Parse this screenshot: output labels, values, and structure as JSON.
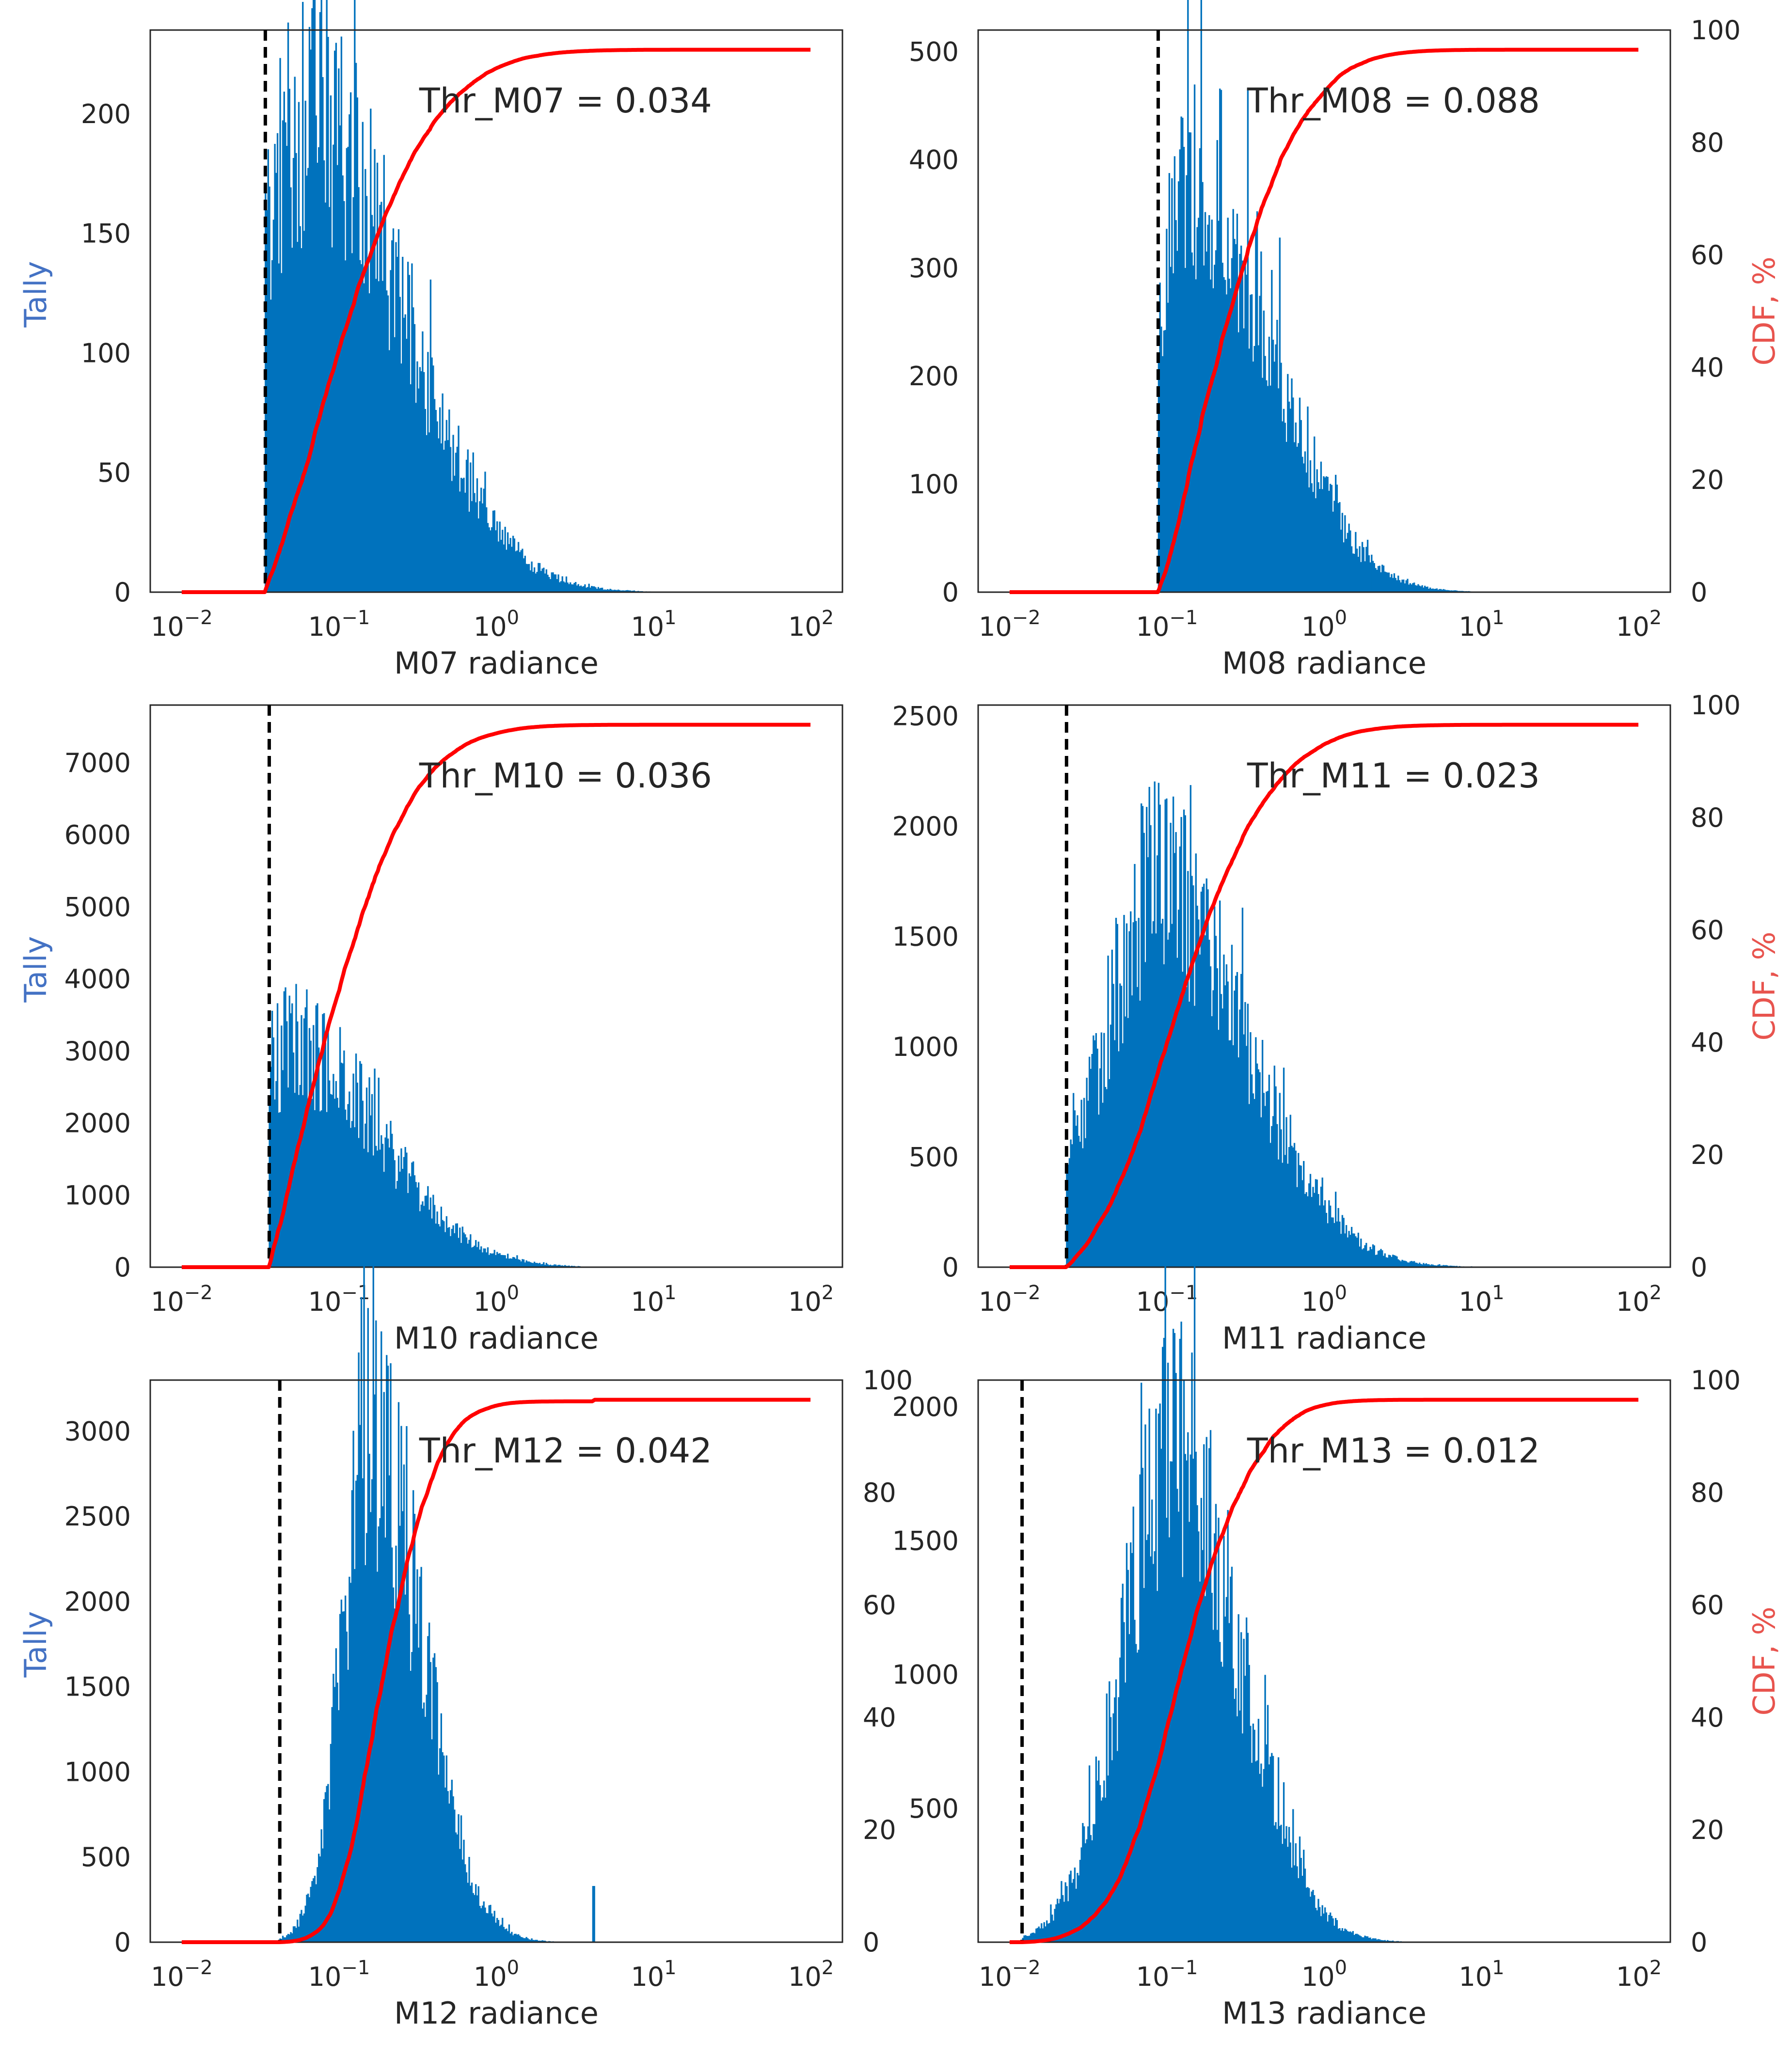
{
  "colors": {
    "hist": "#0072bd",
    "cdf": "#ff0000",
    "tally_label": "#4472c4",
    "cdf_label": "#e8544e",
    "threshold": "#000000",
    "axis": "#262626"
  },
  "chart_data": [
    {
      "type": "bar",
      "id": "m07",
      "xlabel": "M07 radiance",
      "ylabel": "Tally",
      "y2label": "",
      "xscale": "log",
      "xlim_log10": [
        -2.2,
        2.2
      ],
      "ylim": [
        0,
        235
      ],
      "yticks": [
        "0",
        "50",
        "100",
        "150",
        "200"
      ],
      "ytick_values": [
        0,
        50,
        100,
        150,
        200
      ],
      "y2ticks": [],
      "xticks": [
        {
          "base": "10",
          "exp": "−2",
          "log": -2
        },
        {
          "base": "10",
          "exp": "−1",
          "log": -1
        },
        {
          "base": "10",
          "exp": "0",
          "log": 0
        },
        {
          "base": "10",
          "exp": "1",
          "log": 1
        },
        {
          "base": "10",
          "exp": "2",
          "log": 2
        }
      ],
      "annotation": "Thr_M07 = 0.034",
      "threshold": 0.034,
      "hist": {
        "peak_log10": -1.2,
        "peak": 200,
        "sigma_left": 0.35,
        "sigma_right": 0.6,
        "xmax_log10": 1.2,
        "spike_log10": -1.0,
        "spike_height": 0
      }
    },
    {
      "type": "bar",
      "id": "m08",
      "xlabel": "M08 radiance",
      "ylabel": "",
      "y2label": "CDF, %",
      "xscale": "log",
      "xlim_log10": [
        -2.2,
        2.2
      ],
      "ylim": [
        0,
        520
      ],
      "yticks": [
        "0",
        "100",
        "200",
        "300",
        "400",
        "500"
      ],
      "ytick_values": [
        0,
        100,
        200,
        300,
        400,
        500
      ],
      "y2ticks": [
        "0",
        "20",
        "40",
        "60",
        "80",
        "100"
      ],
      "xticks": [
        {
          "base": "10",
          "exp": "−2",
          "log": -2
        },
        {
          "base": "10",
          "exp": "−1",
          "log": -1
        },
        {
          "base": "10",
          "exp": "0",
          "log": 0
        },
        {
          "base": "10",
          "exp": "1",
          "log": 1
        },
        {
          "base": "10",
          "exp": "2",
          "log": 2
        }
      ],
      "annotation": "Thr_M08 = 0.088",
      "threshold": 0.088,
      "hist": {
        "peak_log10": -0.85,
        "peak": 400,
        "sigma_left": 0.2,
        "sigma_right": 0.5,
        "xmax_log10": 1.4,
        "spike_log10": -1.0,
        "spike_height": 0
      }
    },
    {
      "type": "bar",
      "id": "m10",
      "xlabel": "M10 radiance",
      "ylabel": "Tally",
      "y2label": "",
      "xscale": "log",
      "xlim_log10": [
        -2.2,
        2.2
      ],
      "ylim": [
        0,
        7800
      ],
      "yticks": [
        "0",
        "1000",
        "2000",
        "3000",
        "4000",
        "5000",
        "6000",
        "7000"
      ],
      "ytick_values": [
        0,
        1000,
        2000,
        3000,
        4000,
        5000,
        6000,
        7000
      ],
      "y2ticks": [],
      "xticks": [
        {
          "base": "10",
          "exp": "−2",
          "log": -2
        },
        {
          "base": "10",
          "exp": "−1",
          "log": -1
        },
        {
          "base": "10",
          "exp": "0",
          "log": 0
        },
        {
          "base": "10",
          "exp": "1",
          "log": 1
        },
        {
          "base": "10",
          "exp": "2",
          "log": 2
        }
      ],
      "annotation": "Thr_M10 = 0.036",
      "threshold": 0.036,
      "hist": {
        "peak_log10": -1.3,
        "peak": 3100,
        "sigma_left": 0.25,
        "sigma_right": 0.55,
        "xmax_log10": 1.8,
        "spike_log10": -1.0,
        "spike_height": 0
      }
    },
    {
      "type": "bar",
      "id": "m11",
      "xlabel": "M11 radiance",
      "ylabel": "",
      "y2label": "CDF, %",
      "xscale": "log",
      "xlim_log10": [
        -2.2,
        2.2
      ],
      "ylim": [
        0,
        2550
      ],
      "yticks": [
        "0",
        "500",
        "1000",
        "1500",
        "2000",
        "2500"
      ],
      "ytick_values": [
        0,
        500,
        1000,
        1500,
        2000,
        2500
      ],
      "y2ticks": [
        "0",
        "20",
        "40",
        "60",
        "80",
        "100"
      ],
      "xticks": [
        {
          "base": "10",
          "exp": "−2",
          "log": -2
        },
        {
          "base": "10",
          "exp": "−1",
          "log": -1
        },
        {
          "base": "10",
          "exp": "0",
          "log": 0
        },
        {
          "base": "10",
          "exp": "1",
          "log": 1
        },
        {
          "base": "10",
          "exp": "2",
          "log": 2
        }
      ],
      "annotation": "Thr_M11 = 0.023",
      "threshold": 0.023,
      "hist": {
        "peak_log10": -1.05,
        "peak": 1750,
        "sigma_left": 0.35,
        "sigma_right": 0.55,
        "xmax_log10": 1.6,
        "spike_log10": -1.0,
        "spike_height": 0
      }
    },
    {
      "type": "bar",
      "id": "m12",
      "xlabel": "M12 radiance",
      "ylabel": "Tally",
      "y2label": "",
      "xscale": "log",
      "xlim_log10": [
        -2.2,
        2.2
      ],
      "ylim": [
        0,
        3300
      ],
      "yticks": [
        "0",
        "500",
        "1000",
        "1500",
        "2000",
        "2500",
        "3000"
      ],
      "ytick_values": [
        0,
        500,
        1000,
        1500,
        2000,
        2500,
        3000
      ],
      "y2ticks": [
        "0",
        "20",
        "40",
        "60",
        "80",
        "100"
      ],
      "xticks": [
        {
          "base": "10",
          "exp": "−2",
          "log": -2
        },
        {
          "base": "10",
          "exp": "−1",
          "log": -1
        },
        {
          "base": "10",
          "exp": "0",
          "log": 0
        },
        {
          "base": "10",
          "exp": "1",
          "log": 1
        },
        {
          "base": "10",
          "exp": "2",
          "log": 2
        }
      ],
      "annotation": "Thr_M12 = 0.042",
      "threshold": 0.042,
      "hist": {
        "peak_log10": -0.8,
        "peak": 3000,
        "sigma_left": 0.18,
        "sigma_right": 0.32,
        "xmax_log10": 0.62,
        "spike_log10": 0.62,
        "spike_height": 330
      }
    },
    {
      "type": "bar",
      "id": "m13",
      "xlabel": "M13 radiance",
      "ylabel": "",
      "y2label": "CDF, %",
      "xscale": "log",
      "xlim_log10": [
        -2.2,
        2.2
      ],
      "ylim": [
        0,
        2100
      ],
      "yticks": [
        "500",
        "1000",
        "1500",
        "2000"
      ],
      "ytick_values": [
        500,
        1000,
        1500,
        2000
      ],
      "y2ticks": [
        "0",
        "20",
        "40",
        "60",
        "80",
        "100"
      ],
      "xticks": [
        {
          "base": "10",
          "exp": "−2",
          "log": -2
        },
        {
          "base": "10",
          "exp": "−1",
          "log": -1
        },
        {
          "base": "10",
          "exp": "0",
          "log": 0
        },
        {
          "base": "10",
          "exp": "1",
          "log": 1
        },
        {
          "base": "10",
          "exp": "2",
          "log": 2
        }
      ],
      "annotation": "Thr_M13 = 0.012",
      "threshold": 0.012,
      "hist": {
        "peak_log10": -0.95,
        "peak": 1900,
        "sigma_left": 0.32,
        "sigma_right": 0.4,
        "xmax_log10": 1.6,
        "spike_log10": -1.0,
        "spike_height": 0
      }
    }
  ]
}
